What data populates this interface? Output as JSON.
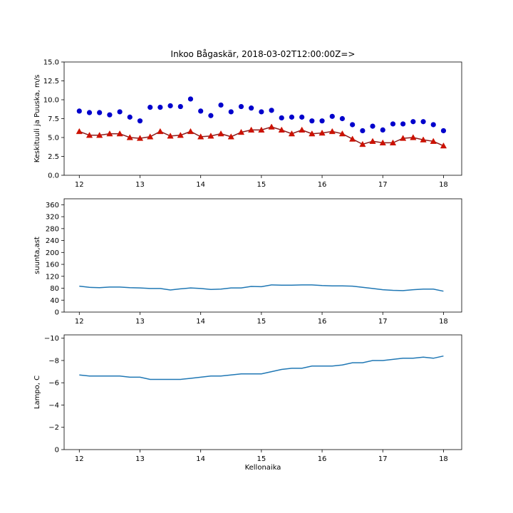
{
  "chart_data": [
    {
      "type": "scatter",
      "title": "Inkoo Bågaskär, 2018-03-02T12:00:00Z=>",
      "xlabel": "",
      "ylabel": "Keskituuli ja Puuska, m/s",
      "xlim": [
        11.75,
        18.3
      ],
      "ylim": [
        0,
        15
      ],
      "x_ticks": [
        "12",
        "13",
        "14",
        "15",
        "16",
        "17",
        "18"
      ],
      "y_ticks": [
        "0.0",
        "2.5",
        "5.0",
        "7.5",
        "10.0",
        "12.5",
        "15.0"
      ],
      "x": [
        12.0,
        12.167,
        12.333,
        12.5,
        12.667,
        12.833,
        13.0,
        13.167,
        13.333,
        13.5,
        13.667,
        13.833,
        14.0,
        14.167,
        14.333,
        14.5,
        14.667,
        14.833,
        15.0,
        15.167,
        15.333,
        15.5,
        15.667,
        15.833,
        16.0,
        16.167,
        16.333,
        16.5,
        16.667,
        16.833,
        17.0,
        17.167,
        17.333,
        17.5,
        17.667,
        17.833,
        18.0
      ],
      "series": [
        {
          "marker": "circle",
          "color": "#0000cc",
          "values": [
            8.5,
            8.3,
            8.3,
            8.0,
            8.4,
            7.7,
            7.2,
            9.0,
            9.0,
            9.2,
            9.1,
            10.1,
            8.5,
            7.9,
            9.3,
            8.4,
            9.1,
            8.9,
            8.4,
            8.6,
            7.6,
            7.7,
            7.7,
            7.2,
            7.2,
            7.8,
            7.5,
            6.7,
            5.9,
            6.5,
            6.0,
            6.8,
            6.8,
            7.1,
            7.1,
            6.7,
            5.9
          ]
        },
        {
          "marker": "triangle",
          "color": "#cc1100",
          "line_color": "#8b1a1a",
          "values": [
            5.8,
            5.3,
            5.3,
            5.5,
            5.5,
            5.0,
            4.9,
            5.1,
            5.8,
            5.2,
            5.3,
            5.8,
            5.1,
            5.2,
            5.5,
            5.1,
            5.7,
            6.0,
            6.0,
            6.4,
            6.0,
            5.5,
            6.0,
            5.5,
            5.6,
            5.8,
            5.5,
            4.8,
            4.1,
            4.5,
            4.3,
            4.3,
            4.9,
            5.0,
            4.7,
            4.5,
            3.9
          ]
        }
      ]
    },
    {
      "type": "line",
      "xlabel": "",
      "ylabel": "suunta,ast",
      "xlim": [
        11.75,
        18.3
      ],
      "ylim": [
        0,
        380
      ],
      "x_ticks": [
        "12",
        "13",
        "14",
        "15",
        "16",
        "17",
        "18"
      ],
      "y_ticks": [
        "0",
        "40",
        "80",
        "120",
        "160",
        "200",
        "240",
        "280",
        "320",
        "360"
      ],
      "x": [
        12.0,
        12.167,
        12.333,
        12.5,
        12.667,
        12.833,
        13.0,
        13.167,
        13.333,
        13.5,
        13.667,
        13.833,
        14.0,
        14.167,
        14.333,
        14.5,
        14.667,
        14.833,
        15.0,
        15.167,
        15.333,
        15.5,
        15.667,
        15.833,
        16.0,
        16.167,
        16.333,
        16.5,
        16.667,
        16.833,
        17.0,
        17.167,
        17.333,
        17.5,
        17.667,
        17.833,
        18.0
      ],
      "series": [
        {
          "color": "#1f77b4",
          "values": [
            87,
            83,
            82,
            84,
            84,
            82,
            81,
            79,
            79,
            74,
            78,
            81,
            79,
            76,
            77,
            81,
            81,
            86,
            85,
            91,
            90,
            90,
            91,
            91,
            89,
            88,
            88,
            87,
            83,
            79,
            75,
            73,
            72,
            75,
            77,
            77,
            70
          ]
        }
      ]
    },
    {
      "type": "line",
      "xlabel": "Kellonaika",
      "ylabel": "Lampo, C",
      "xlim": [
        11.75,
        18.3
      ],
      "ylim": [
        0,
        -10.3
      ],
      "inverted_y": true,
      "x_ticks": [
        "12",
        "13",
        "14",
        "15",
        "16",
        "17",
        "18"
      ],
      "y_ticks": [
        "0",
        "−2",
        "−4",
        "−6",
        "−8",
        "−10"
      ],
      "x": [
        12.0,
        12.167,
        12.333,
        12.5,
        12.667,
        12.833,
        13.0,
        13.167,
        13.333,
        13.5,
        13.667,
        13.833,
        14.0,
        14.167,
        14.333,
        14.5,
        14.667,
        14.833,
        15.0,
        15.167,
        15.333,
        15.5,
        15.667,
        15.833,
        16.0,
        16.167,
        16.333,
        16.5,
        16.667,
        16.833,
        17.0,
        17.167,
        17.333,
        17.5,
        17.667,
        17.833,
        18.0
      ],
      "series": [
        {
          "color": "#1f77b4",
          "values": [
            -6.7,
            -6.6,
            -6.6,
            -6.6,
            -6.6,
            -6.5,
            -6.5,
            -6.3,
            -6.3,
            -6.3,
            -6.3,
            -6.4,
            -6.5,
            -6.6,
            -6.6,
            -6.7,
            -6.8,
            -6.8,
            -6.8,
            -7.0,
            -7.2,
            -7.3,
            -7.3,
            -7.5,
            -7.5,
            -7.5,
            -7.6,
            -7.8,
            -7.8,
            -8.0,
            -8.0,
            -8.1,
            -8.2,
            -8.2,
            -8.3,
            -8.2,
            -8.4
          ]
        }
      ]
    }
  ]
}
